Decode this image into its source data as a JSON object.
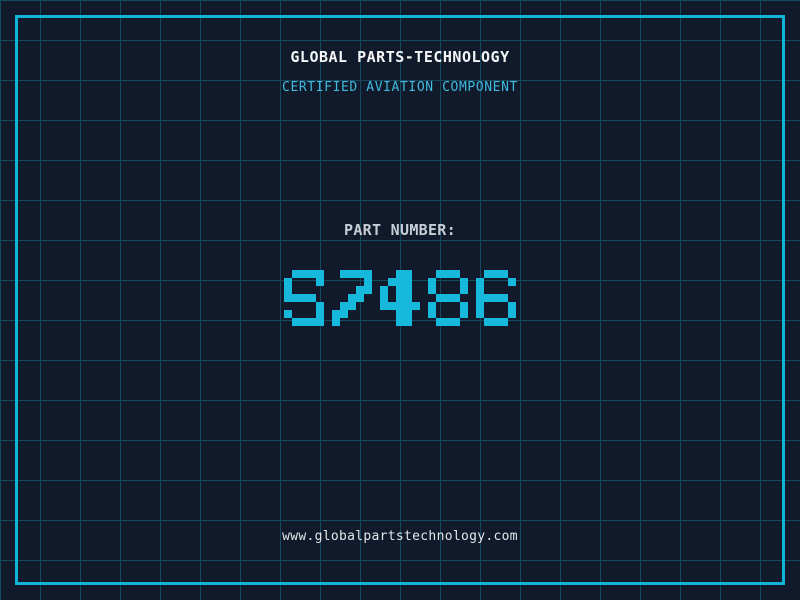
{
  "colors": {
    "background": "#101a2b",
    "grid-line": "#17495e",
    "frame": "#12b4d8",
    "accent": "#16b9dc",
    "accent-soft": "#3fb9dd",
    "title": "#f4f6f8",
    "label": "#c7cdd5",
    "url": "#e3e7ea"
  },
  "header": {
    "title": "GLOBAL PARTS-TECHNOLOGY",
    "subtitle": "CERTIFIED AVIATION COMPONENT"
  },
  "part": {
    "label": "PART NUMBER:",
    "number": "S7486"
  },
  "footer": {
    "url": "www.globalpartstechnology.com"
  }
}
